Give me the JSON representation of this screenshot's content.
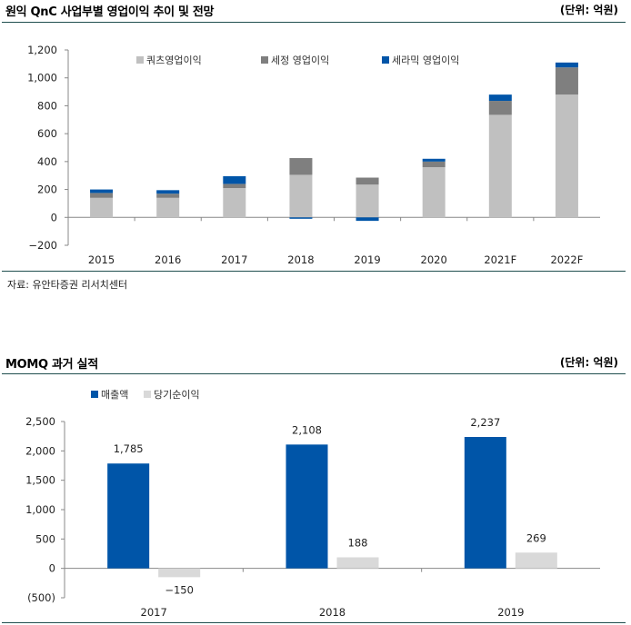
{
  "chart1": {
    "title": "원익 QnC 사업부별 영업이익 추이 및 전망",
    "unit": "(단위: 억원)",
    "source": "자료: 유안타증권 리서치센터"
  },
  "chart2": {
    "title": "MOMQ 과거 실적",
    "unit": "(단위: 억원)"
  },
  "chart_data": [
    {
      "type": "bar",
      "stacked": true,
      "title": "원익 QnC 사업부별 영업이익 추이 및 전망",
      "categories": [
        "2015",
        "2016",
        "2017",
        "2018",
        "2019",
        "2020",
        "2021F",
        "2022F"
      ],
      "series": [
        {
          "name": "쿼츠영업이익",
          "color": "#c0c0c0",
          "values": [
            140,
            140,
            210,
            305,
            235,
            360,
            735,
            880
          ]
        },
        {
          "name": "세정 영업이익",
          "color": "#7f7f7f",
          "values": [
            35,
            30,
            30,
            120,
            50,
            40,
            100,
            195
          ]
        },
        {
          "name": "세라믹 영업이익",
          "color": "#0055a8",
          "values": [
            25,
            25,
            55,
            -10,
            -25,
            20,
            45,
            35
          ]
        }
      ],
      "yticks": [
        "1,200",
        "1,000",
        "800",
        "600",
        "400",
        "200",
        "0",
        "−200"
      ],
      "ylim": [
        -200,
        1200
      ],
      "legend": "top"
    },
    {
      "type": "bar",
      "title": "MOMQ 과거 실적",
      "categories": [
        "2017",
        "2018",
        "2019"
      ],
      "series": [
        {
          "name": "매출액",
          "color": "#0055a8",
          "values": [
            1785,
            2108,
            2237
          ],
          "labels": [
            "1,785",
            "2,108",
            "2,237"
          ]
        },
        {
          "name": "당기순이익",
          "color": "#d9d9d9",
          "values": [
            -150,
            188,
            269
          ],
          "labels": [
            "−150",
            "188",
            "269"
          ]
        }
      ],
      "yticks": [
        "2,500",
        "2,000",
        "1,500",
        "1,000",
        "500",
        "0",
        "(500)"
      ],
      "ylim": [
        -500,
        2500
      ],
      "legend": "top-left"
    }
  ]
}
